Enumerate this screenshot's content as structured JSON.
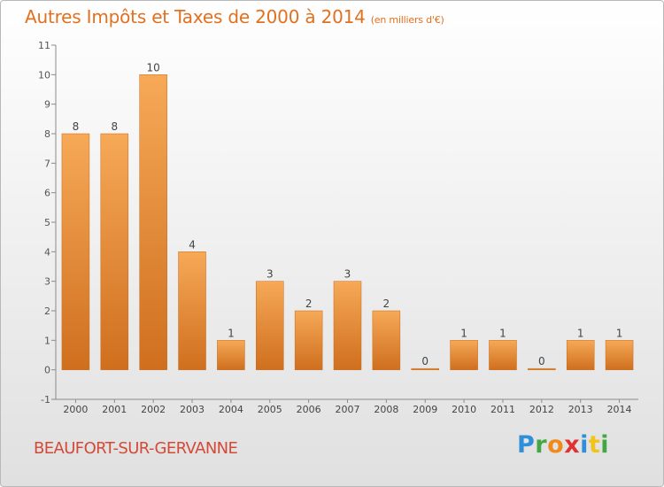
{
  "header": {
    "title": "Autres Impôts et Taxes de 2000 à 2014",
    "unit": "(en milliers d'€)"
  },
  "footer": {
    "commune": "BEAUFORT-SUR-GERVANNE",
    "brand_letters": [
      "P",
      "r",
      "o",
      "x",
      "i",
      "t",
      "i"
    ]
  },
  "colors": {
    "title": "#e2701e",
    "commune": "#d34a38",
    "bar_top": "#f6a957",
    "bar_bottom": "#cf6f1e"
  },
  "chart_data": {
    "type": "bar",
    "title": "Autres Impôts et Taxes de 2000 à 2014",
    "subtitle": "(en milliers d'€)",
    "xlabel": "",
    "ylabel": "",
    "categories": [
      "2000",
      "2001",
      "2002",
      "2003",
      "2004",
      "2005",
      "2006",
      "2007",
      "2008",
      "2009",
      "2010",
      "2011",
      "2012",
      "2013",
      "2014"
    ],
    "values": [
      8,
      8,
      10,
      4,
      1,
      3,
      2,
      3,
      2,
      0,
      1,
      1,
      0,
      1,
      1
    ],
    "data_labels": [
      "8",
      "8",
      "10",
      "4",
      "1",
      "3",
      "2",
      "3",
      "2",
      "0",
      "1",
      "1",
      "0",
      "1",
      "1"
    ],
    "ylim": [
      -1,
      11
    ],
    "y_ticks": [
      -1,
      0,
      1,
      2,
      3,
      4,
      5,
      6,
      7,
      8,
      9,
      10,
      11
    ],
    "y_tick_labels": [
      "-1",
      "0",
      "1",
      "2",
      "3",
      "4",
      "5",
      "6",
      "7",
      "8",
      "9",
      "10",
      "11"
    ],
    "grid": false,
    "legend": "none"
  }
}
